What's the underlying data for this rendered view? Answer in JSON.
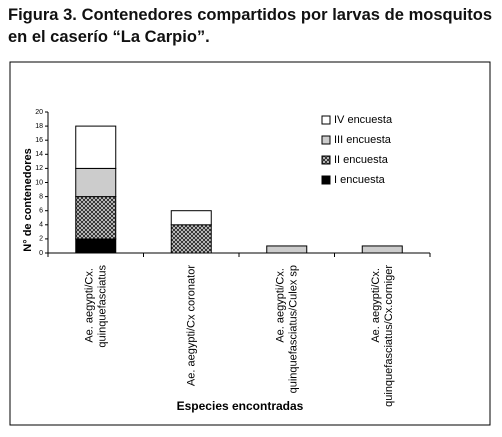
{
  "caption": "Figura 3. Contenedores compartidos por larvas de mosquitos en el caserío “La Carpio”.",
  "chart_data": {
    "type": "stacked_bar",
    "xlabel": "Especies encontradas",
    "ylabel": "N° de contenedores",
    "categories": [
      "Ae. aegypti/Cx. quinquefasciatus",
      "Ae. aegypti/Cx coronator",
      "Ae. aegypti/Cx. quinquefasciatus/Culex sp",
      "Ae. aegypti/Cx. quinquefasciatus/Cx.corniger"
    ],
    "series": [
      {
        "name": "I encuesta",
        "color": "#000000",
        "values": [
          2,
          0,
          0,
          0
        ]
      },
      {
        "name": "II encuesta",
        "color": "#555555",
        "pattern": "crosshatch",
        "values": [
          6,
          4,
          0,
          0
        ]
      },
      {
        "name": "III encuesta",
        "color": "#cccccc",
        "values": [
          4,
          0,
          1,
          1
        ]
      },
      {
        "name": "IV encuesta",
        "color": "#ffffff",
        "values": [
          6,
          2,
          0,
          0
        ]
      }
    ],
    "ylim": [
      0,
      20
    ],
    "yticks": [
      0,
      2,
      4,
      6,
      8,
      10,
      12,
      14,
      16,
      18,
      20
    ],
    "legend": "right"
  }
}
